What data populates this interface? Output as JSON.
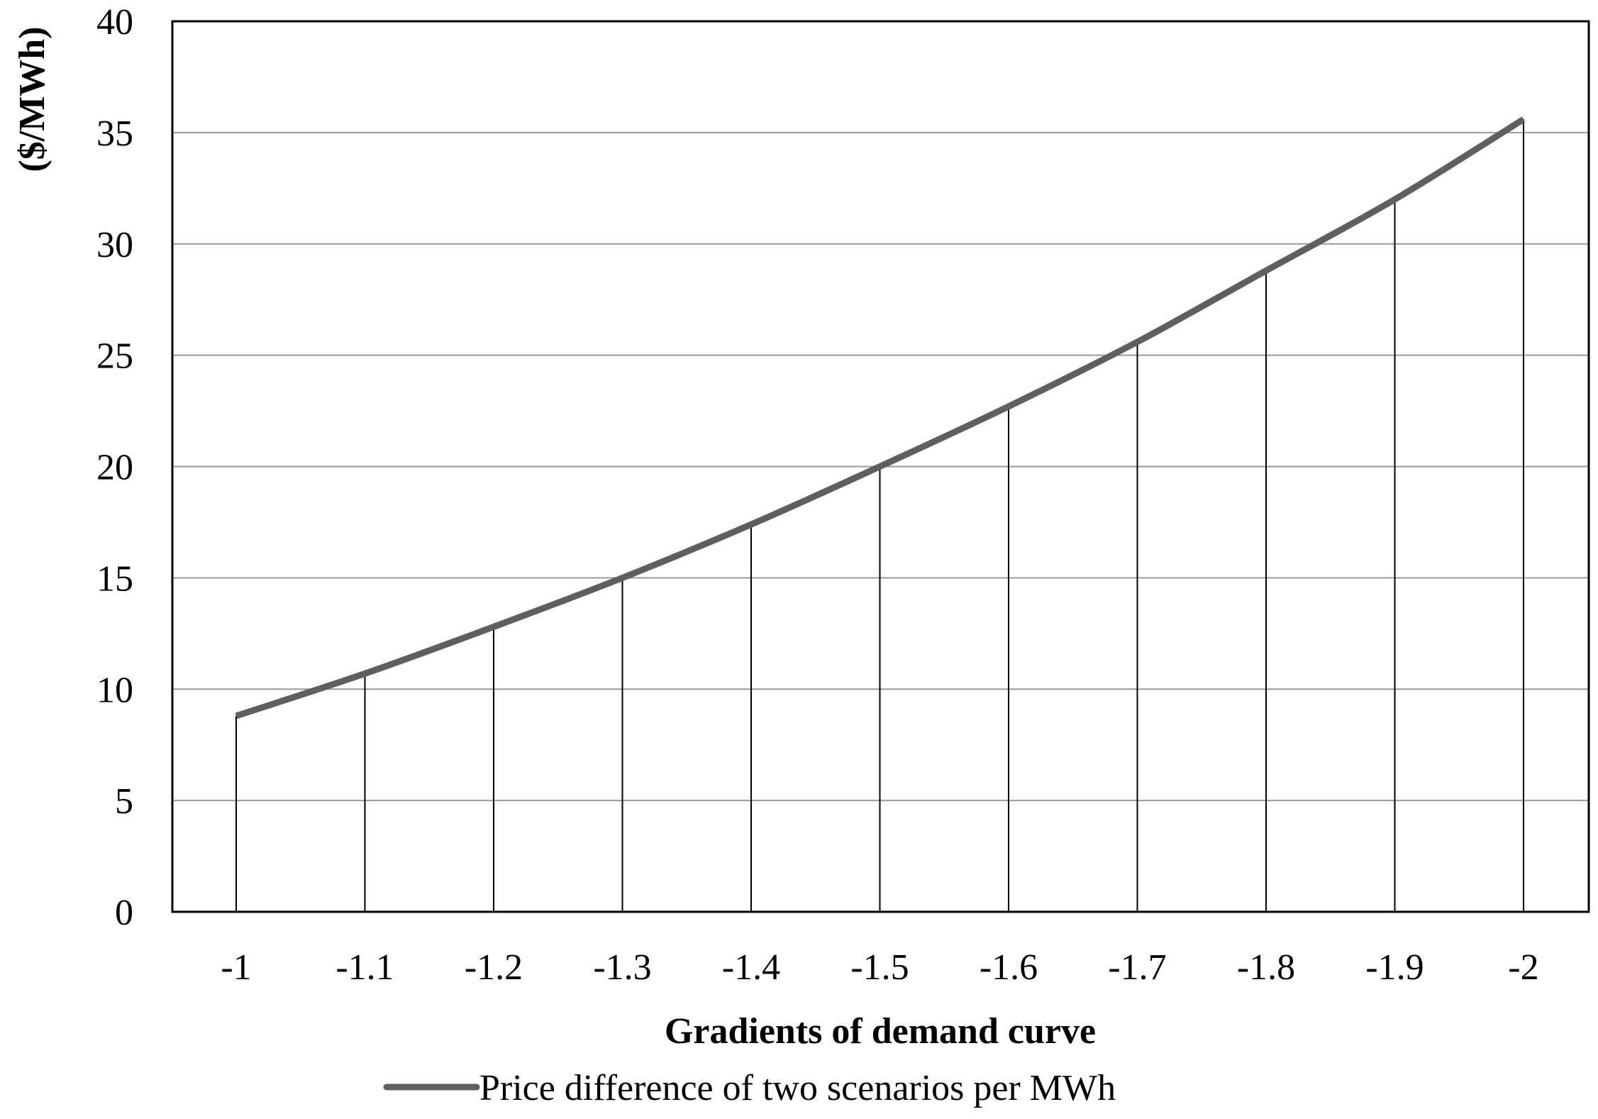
{
  "chart_data": {
    "type": "line",
    "x": [
      -1,
      -1.1,
      -1.2,
      -1.3,
      -1.4,
      -1.5,
      -1.6,
      -1.7,
      -1.8,
      -1.9,
      -2
    ],
    "x_tick_labels": [
      "-1",
      "-1.1",
      "-1.2",
      "-1.3",
      "-1.4",
      "-1.5",
      "-1.6",
      "-1.7",
      "-1.8",
      "-1.9",
      "-2"
    ],
    "series": [
      {
        "name": "Price difference of two scenarios per MWh",
        "values": [
          8.8,
          10.7,
          12.8,
          15.0,
          17.4,
          20.0,
          22.7,
          25.6,
          28.8,
          32.0,
          35.6
        ],
        "color": "#5f5f5f"
      }
    ],
    "title": "",
    "xlabel": "Gradients of demand curve",
    "ylabel": "($/MWh)",
    "ylim": [
      0,
      40
    ],
    "y_ticks": [
      0,
      5,
      10,
      15,
      20,
      25,
      30,
      35,
      40
    ],
    "grid": "horizontal",
    "drop_lines": true,
    "legend_position": "bottom-center"
  }
}
